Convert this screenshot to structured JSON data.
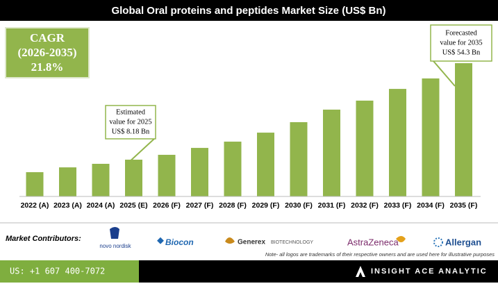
{
  "chart_data": {
    "type": "bar",
    "title": "Global Oral proteins and peptides Market Size (US$ Bn)",
    "categories": [
      "2022 (A)",
      "2023 (A)",
      "2024 (A)",
      "2025 (E)",
      "2026 (F)",
      "2027 (F)",
      "2028 (F)",
      "2029 (F)",
      "2030 (F)",
      "2031 (F)",
      "2032 (F)",
      "2033 (F)",
      "2034 (F)",
      "2035 (F)"
    ],
    "values": [
      2.2,
      4.5,
      6.2,
      8.18,
      10.5,
      13.8,
      16.8,
      21.1,
      26.1,
      32.1,
      36.4,
      42.0,
      47.0,
      54.3
    ],
    "color": "#92b54c",
    "ylim": [
      -9.4,
      54.3
    ],
    "annotations": [
      {
        "lines": [
          "Estimated",
          "value for 2025",
          "US$ 8.18 Bn"
        ],
        "category": 3
      },
      {
        "lines": [
          "Forecasted",
          "value for 2035",
          "US$ 54.3 Bn"
        ],
        "category": 13
      }
    ]
  },
  "cagr": {
    "label": "CAGR",
    "period": "(2026-2035)",
    "value": "21.8%"
  },
  "contributors": {
    "label": "Market Contributors:",
    "logos": [
      "novo nordisk",
      "Biocon",
      "Generex",
      "BIOTECHNOLOGY",
      "AstraZeneca",
      "Allergan"
    ],
    "note": "Note- all logos are trademarks of their respective owners and are used here for illustrative purposes"
  },
  "footer": {
    "phone": "US: +1 607 400-7072",
    "brand": "INSIGHT ACE ANALYTIC"
  }
}
